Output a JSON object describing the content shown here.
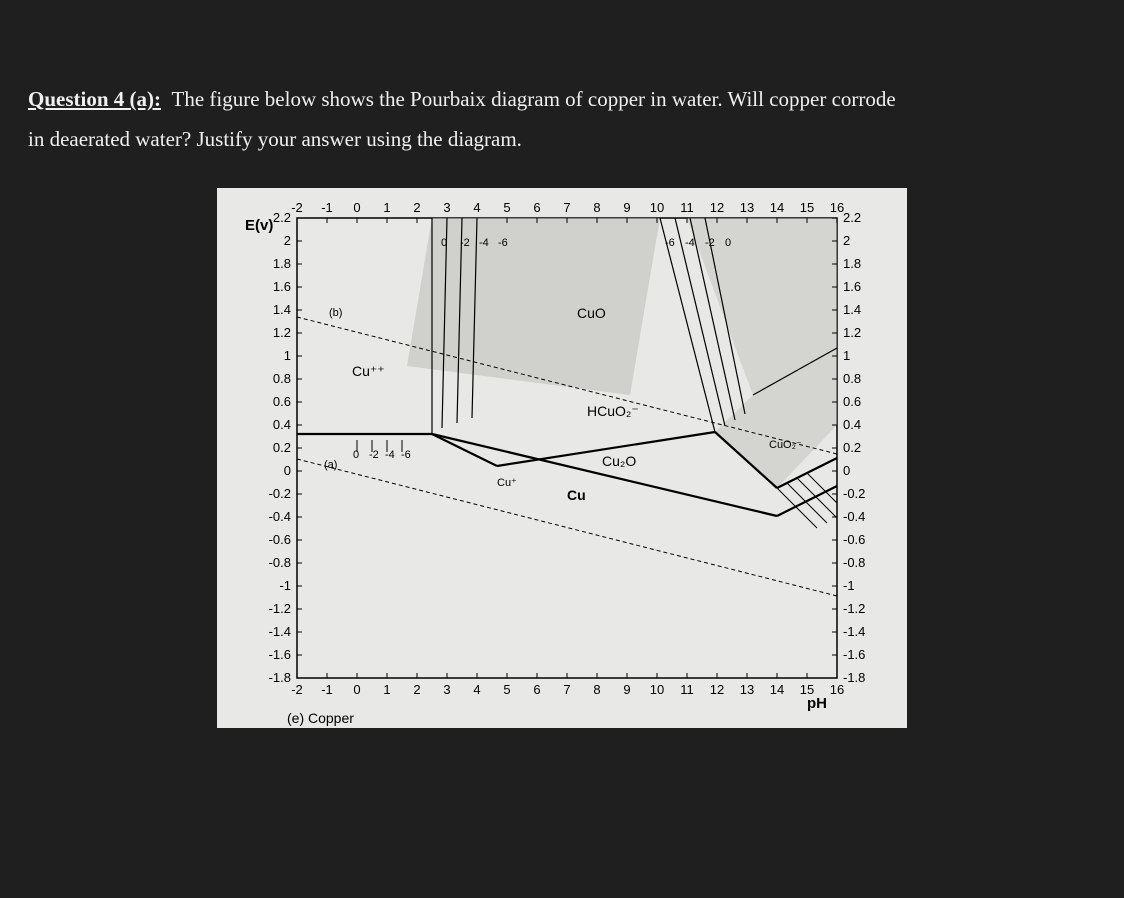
{
  "question": {
    "label": "Question 4 (a):",
    "body_1": "The figure below shows the Pourbaix diagram of copper in water. Will copper corrode",
    "body_2": "in deaerated water? Justify your answer using the diagram."
  },
  "diagram": {
    "caption": "(e) Copper",
    "y_axis_label": "E(v)",
    "x_axis_label": "pH",
    "x_ticks": [
      -2,
      -1,
      0,
      1,
      2,
      3,
      4,
      5,
      6,
      7,
      8,
      9,
      10,
      11,
      12,
      13,
      14,
      15,
      16
    ],
    "y_ticks": [
      2.2,
      2,
      1.8,
      1.6,
      1.4,
      1.2,
      1,
      0.8,
      0.6,
      0.4,
      0.2,
      0,
      -0.2,
      -0.4,
      -0.6,
      -0.8,
      -1,
      -1.2,
      -1.4,
      -1.6,
      -1.8
    ],
    "regions": {
      "cu2plus": "Cu⁺⁺",
      "cuo": "CuO",
      "hcuo2": "HCuO₂⁻",
      "cu2o": "Cu₂O",
      "cu": "Cu",
      "cuplus": "Cu⁺",
      "cuo2": "CuO₂⁻"
    },
    "water_lines": {
      "a": "(a)",
      "b": "(b)"
    },
    "iso_labels_top": [
      "0",
      "-2",
      "-4",
      "-6"
    ],
    "iso_labels_top_right": [
      "-6",
      "-4",
      "-2",
      "0"
    ],
    "iso_labels_mid": [
      "0",
      "-2",
      "-4",
      "-6"
    ],
    "colors": {
      "paper": "#e8e8e6",
      "ink": "#000000",
      "shade": "#bfbfbb"
    }
  }
}
